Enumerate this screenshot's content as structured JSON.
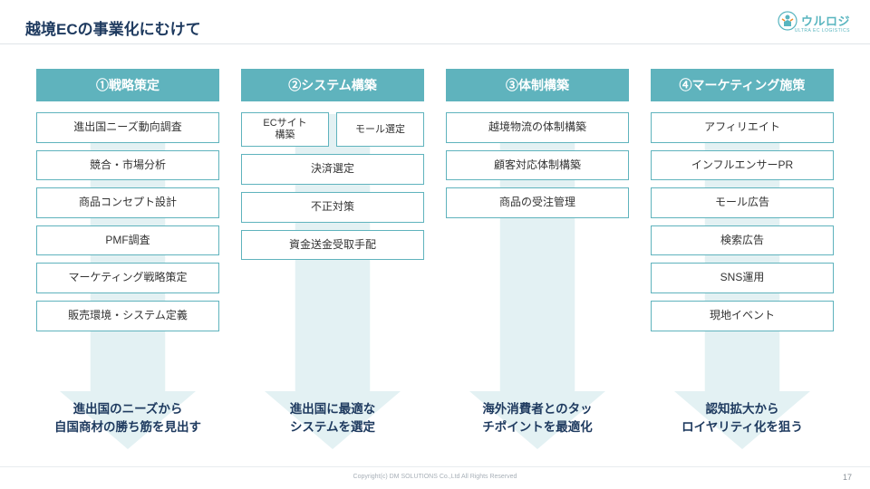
{
  "slide": {
    "title": "越境ECの事業化にむけて",
    "page_number": "17"
  },
  "logo": {
    "text": "ウルロジ",
    "subtext": "ULTRA EC LOGISTICS",
    "icon_color": "#58b5bf"
  },
  "style": {
    "header_bg": "#5fb3bd",
    "header_text": "#ffffff",
    "box_border": "#5fb3bd",
    "box_bg": "#ffffff",
    "box_text": "#333333",
    "title_color": "#1e3a5f",
    "caption_color": "#1e3a5f",
    "arrow_fill": "#e3f1f3",
    "title_fontsize": 17,
    "header_fontsize": 14,
    "box_fontsize": 12,
    "caption_fontsize": 13.5
  },
  "columns": [
    {
      "header": "①戦略策定",
      "boxes": [
        {
          "type": "single",
          "label": "進出国ニーズ動向調査"
        },
        {
          "type": "single",
          "label": "競合・市場分析"
        },
        {
          "type": "single",
          "label": "商品コンセプト設計"
        },
        {
          "type": "single",
          "label": "PMF調査"
        },
        {
          "type": "single",
          "label": "マーケティング戦略策定"
        },
        {
          "type": "single",
          "label": "販売環境・システム定義"
        }
      ],
      "caption_line1": "進出国のニーズから",
      "caption_line2": "自国商材の勝ち筋を見出す",
      "arrow_height": 370
    },
    {
      "header": "②システム構築",
      "boxes": [
        {
          "type": "pair",
          "left": "ECサイト\n構築",
          "right": "モール選定"
        },
        {
          "type": "single",
          "label": "決済選定"
        },
        {
          "type": "single",
          "label": "不正対策"
        },
        {
          "type": "single",
          "label": "資金送金受取手配"
        }
      ],
      "caption_line1": "進出国に最適な",
      "caption_line2": "システムを選定",
      "arrow_height": 370
    },
    {
      "header": "③体制構築",
      "boxes": [
        {
          "type": "single",
          "label": "越境物流の体制構築"
        },
        {
          "type": "single",
          "label": "顧客対応体制構築"
        },
        {
          "type": "single",
          "label": "商品の受注管理"
        }
      ],
      "caption_line1": "海外消費者とのタッ",
      "caption_line2": "チポイントを最適化",
      "arrow_height": 370
    },
    {
      "header": "④マーケティング施策",
      "boxes": [
        {
          "type": "single",
          "label": "アフィリエイト"
        },
        {
          "type": "single",
          "label": "インフルエンサーPR"
        },
        {
          "type": "single",
          "label": "モール広告"
        },
        {
          "type": "single",
          "label": "検索広告"
        },
        {
          "type": "single",
          "label": "SNS運用"
        },
        {
          "type": "single",
          "label": "現地イベント"
        }
      ],
      "caption_line1": "認知拡大から",
      "caption_line2": "ロイヤリティ化を狙う",
      "arrow_height": 370
    }
  ],
  "footer": {
    "copyright": "Copyright(c) DM SOLUTIONS Co.,Ltd All Rights Reserved"
  }
}
